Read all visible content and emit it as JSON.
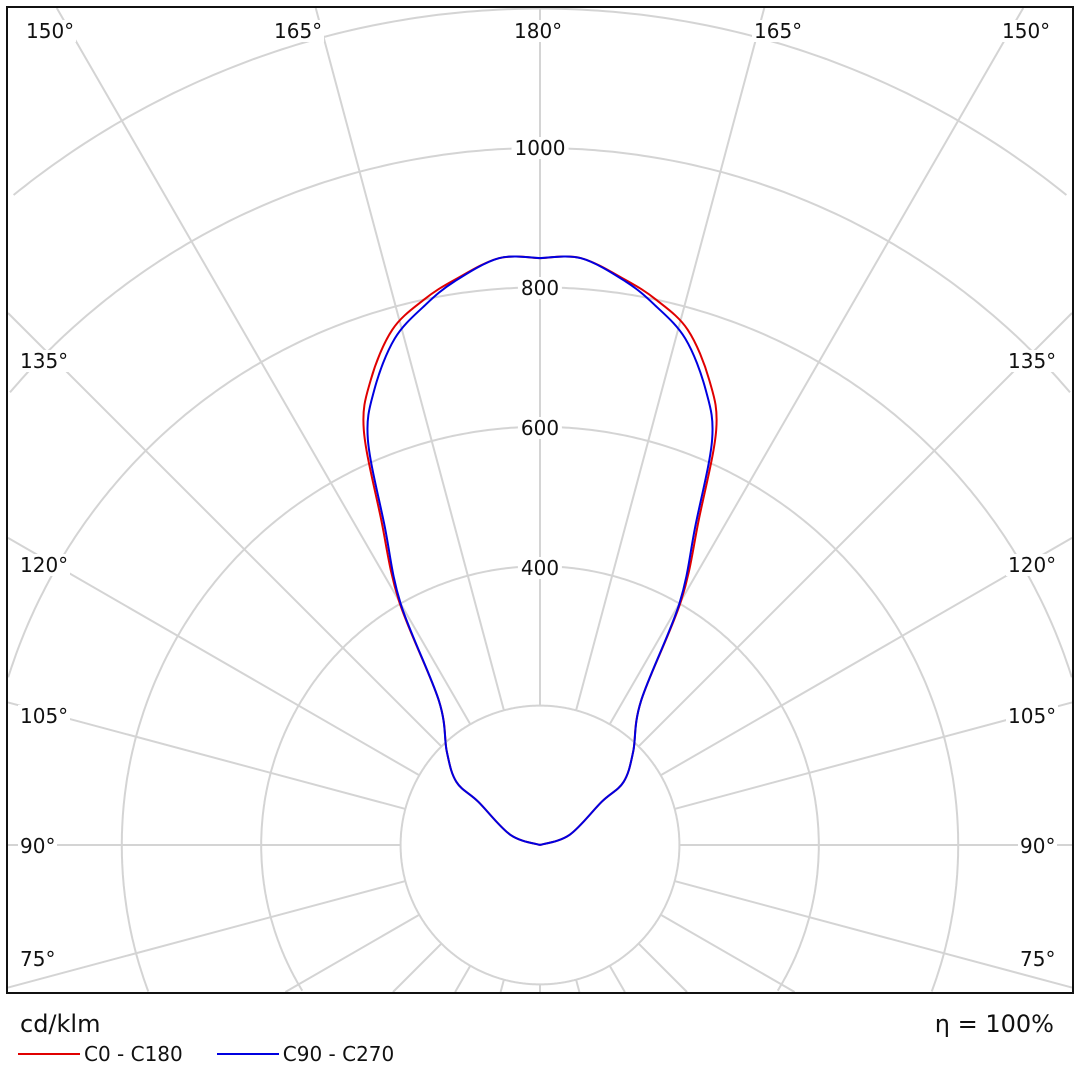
{
  "chart_data": {
    "type": "polar",
    "unit_label": "cd/klm",
    "efficiency_label": "η = 100%",
    "radial_ticks": [
      200,
      400,
      600,
      800,
      1000,
      1200
    ],
    "radial_tick_labels": [
      "400",
      "600",
      "800",
      "1000"
    ],
    "angle_labels": {
      "top": [
        "150°",
        "165°",
        "180°",
        "165°",
        "150°"
      ],
      "left": [
        "135°",
        "120°",
        "105°",
        "90°",
        "75°"
      ],
      "right": [
        "135°",
        "120°",
        "105°",
        "90°",
        "75°"
      ]
    },
    "gamma": [
      90,
      109,
      125,
      127,
      135,
      145,
      150,
      154,
      157,
      160,
      164,
      168,
      171.4,
      176,
      180
    ],
    "series": [
      {
        "name": "C0 - C180",
        "color": "#e00000",
        "values": [
          0,
          45,
          108,
          150,
          189,
          253,
          405,
          520,
          647,
          710,
          769,
          800,
          820,
          844,
          842
        ]
      },
      {
        "name": "C90 - C270",
        "color": "#0000e0",
        "values": [
          0,
          45,
          108,
          150,
          189,
          253,
          400,
          508,
          632,
          695,
          756,
          792,
          818,
          844,
          842
        ]
      }
    ]
  }
}
